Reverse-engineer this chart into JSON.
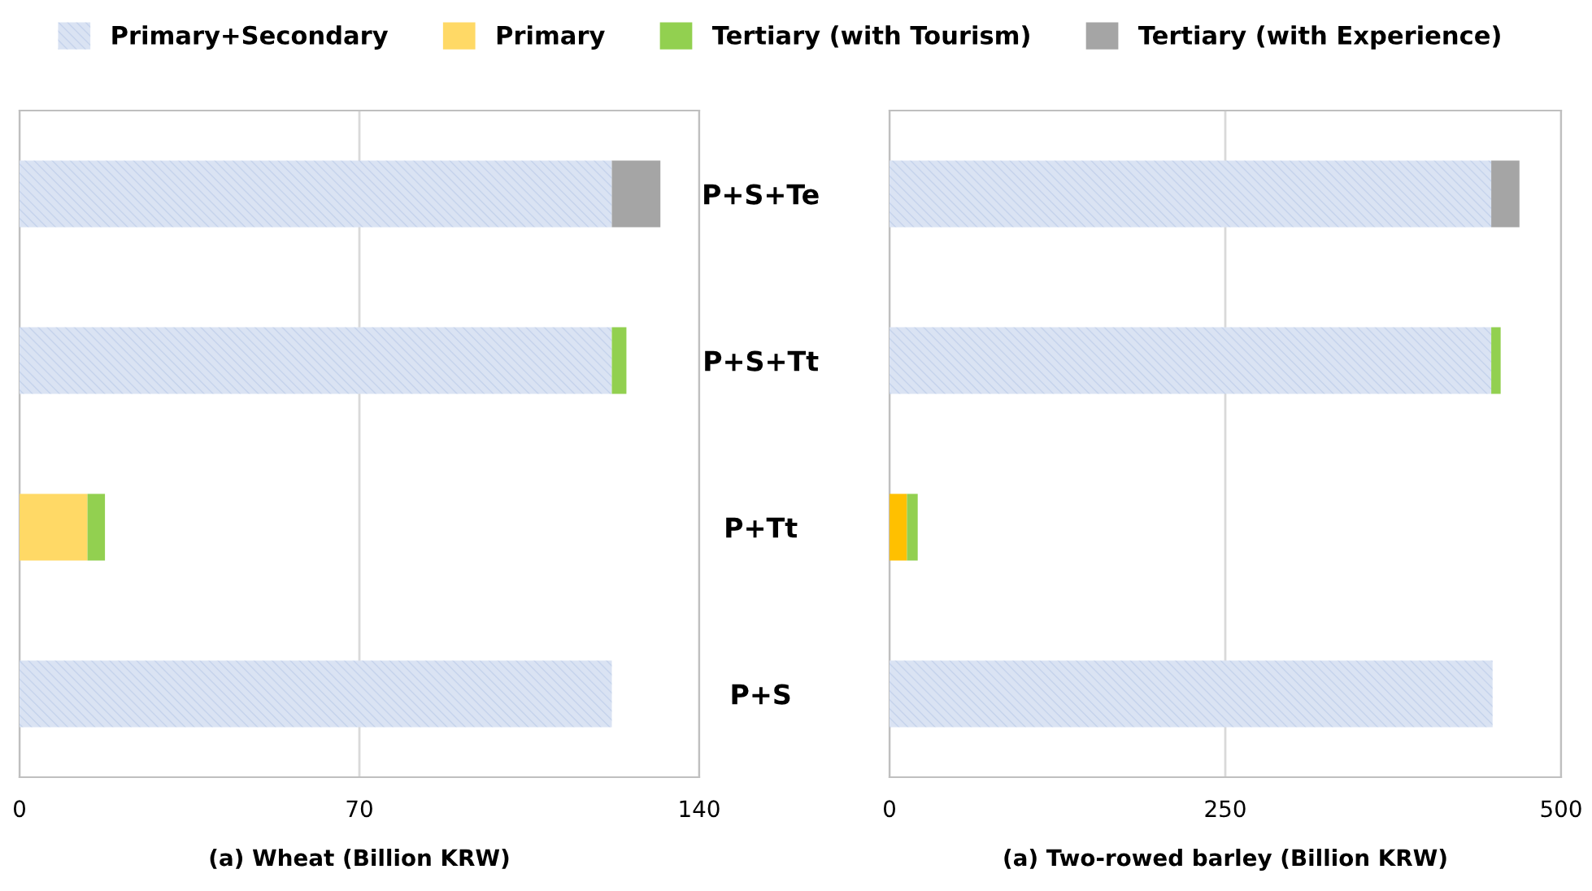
{
  "chart_data": [
    {
      "type": "bar",
      "orientation": "horizontal",
      "stacked": true,
      "xlabel": "(a) Wheat (Billion KRW)",
      "categories": [
        null,
        null,
        null,
        null
      ],
      "xlim": [
        0,
        140
      ],
      "xticks": [
        0,
        70,
        140
      ],
      "grid": "x",
      "legend": "top",
      "series": [
        {
          "name": "Primary+Secondary",
          "color": "#dae3f3",
          "values": [
            122,
            122,
            null,
            122
          ]
        },
        {
          "name": "Primary",
          "color": "#ffd966",
          "values": [
            null,
            null,
            14,
            null
          ]
        },
        {
          "name": "Tertiary (with Tourism)",
          "color": "#92d050",
          "values": [
            null,
            3,
            3.6,
            null
          ]
        },
        {
          "name": "Tertiary (with Experience)",
          "color": "#a5a5a5",
          "values": [
            10,
            null,
            null,
            null
          ]
        }
      ]
    },
    {
      "type": "bar",
      "orientation": "horizontal",
      "stacked": true,
      "xlabel": "(a) Two-rowed barley (Billion KRW)",
      "categories": [
        "P+S+Te",
        "P+S+Tt",
        "P+Tt",
        "P+S"
      ],
      "xlim": [
        0,
        500
      ],
      "xticks": [
        0,
        250,
        500
      ],
      "grid": "x",
      "series": [
        {
          "color": "#dae3f3",
          "values": [
            448,
            448,
            null,
            449
          ]
        },
        {
          "color": "#ffc000",
          "values": [
            null,
            null,
            13,
            null
          ]
        },
        {
          "color": "#92d050",
          "values": [
            null,
            7,
            8,
            null
          ]
        },
        {
          "color": "#a5a5a5",
          "values": [
            21,
            null,
            null,
            null
          ]
        }
      ]
    }
  ]
}
